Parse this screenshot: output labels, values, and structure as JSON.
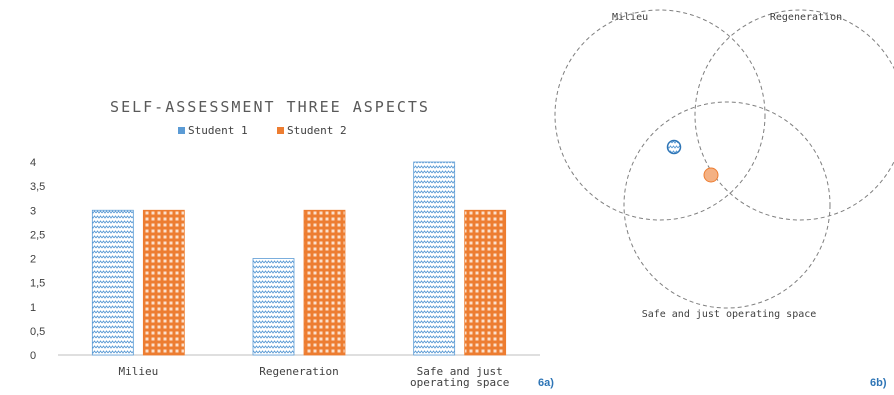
{
  "chart_data": [
    {
      "type": "bar",
      "title": "SELF-ASSESSMENT THREE ASPECTS",
      "categories": [
        "Milieu",
        "Regeneration",
        "Safe and just operating space"
      ],
      "category_lines": [
        [
          "Milieu"
        ],
        [
          "Regeneration"
        ],
        [
          "Safe and just",
          "operating space"
        ]
      ],
      "series": [
        {
          "name": "Student 1",
          "values": [
            3,
            2,
            4
          ],
          "color": "#5b9bd5"
        },
        {
          "name": "Student 2",
          "values": [
            3,
            3,
            3
          ],
          "color": "#ed7d31"
        }
      ],
      "ylim": [
        0,
        4
      ],
      "yticks": [
        "0",
        "0,5",
        "1",
        "1,5",
        "2",
        "2,5",
        "3",
        "3,5",
        "4"
      ],
      "ytick_values": [
        0,
        0.5,
        1,
        1.5,
        2,
        2.5,
        3,
        3.5,
        4
      ],
      "legend_position": "top",
      "grid": false,
      "panel_label": "6a)"
    },
    {
      "type": "venn",
      "sets": [
        "Milieu",
        "Regeneration",
        "Safe and just operating space"
      ],
      "points": [
        {
          "series": "Student 1",
          "color": "#5b9bd5"
        },
        {
          "series": "Student 2",
          "color": "#ed7d31"
        }
      ],
      "panel_label": "6b)"
    }
  ],
  "colors": {
    "accent_label": "#2e75b6",
    "axis": "#bfbfbf",
    "text": "#404040"
  }
}
